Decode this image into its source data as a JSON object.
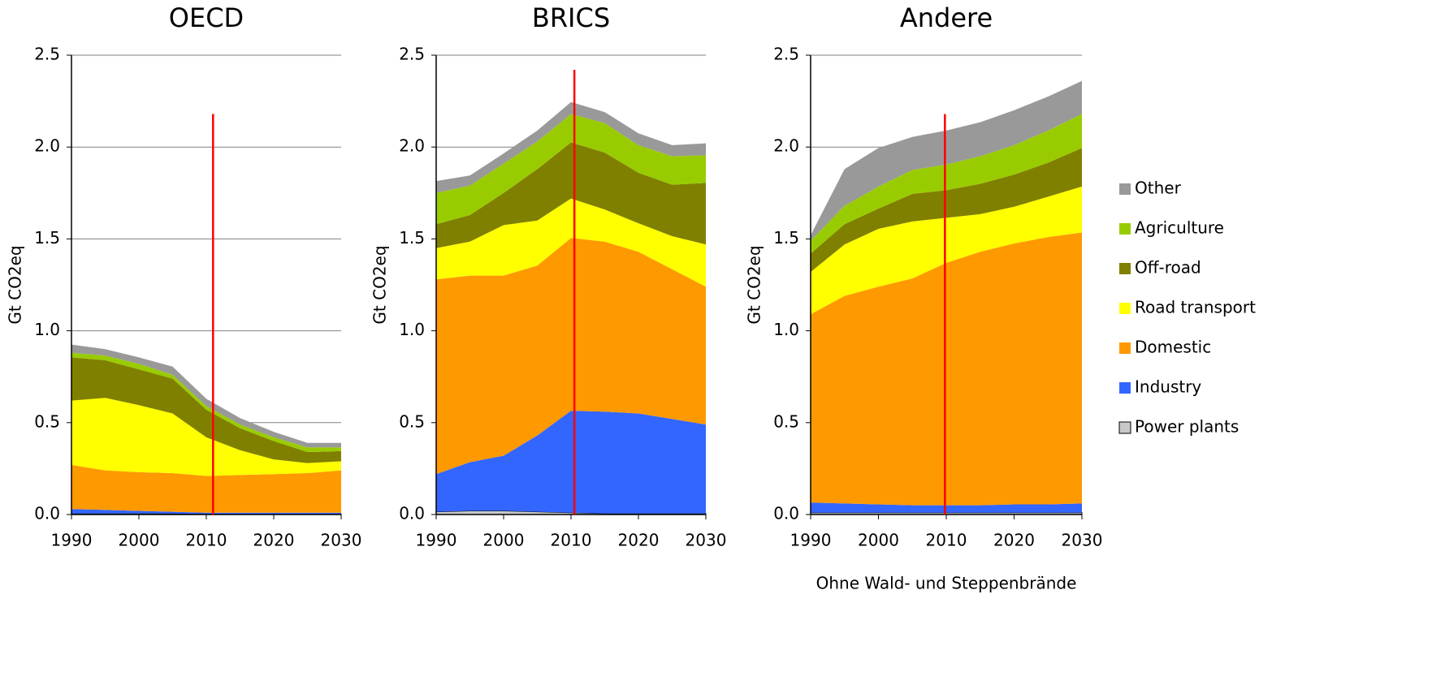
{
  "chart_data": [
    {
      "type": "stacked_area",
      "title": "OECD",
      "ylabel": "Gt CO2eq",
      "x": [
        1990,
        1995,
        2000,
        2005,
        2010,
        2015,
        2020,
        2025,
        2030
      ],
      "xlim": [
        1990,
        2030
      ],
      "xticks": [
        1990,
        2000,
        2010,
        2020,
        2030
      ],
      "ylim": [
        0,
        2.5
      ],
      "yticks": [
        {
          "value": 0,
          "label": "0.0"
        },
        0.5,
        {
          "value": 1,
          "label": "1.0"
        },
        1.5,
        {
          "value": 2,
          "label": "2.0"
        },
        2.5
      ],
      "grid": true,
      "reference_line": {
        "x": 2011,
        "top": 2.18,
        "color": "#ff0000"
      },
      "series": [
        {
          "name": "Power plants",
          "color": "#c8c8c8",
          "values": [
            0.005,
            0.005,
            0.005,
            0.005,
            0.003,
            0.003,
            0.003,
            0.003,
            0.003
          ]
        },
        {
          "name": "Industry",
          "color": "#3366ff",
          "values": [
            0.025,
            0.02,
            0.015,
            0.01,
            0.007,
            0.007,
            0.007,
            0.007,
            0.007
          ]
        },
        {
          "name": "Domestic",
          "color": "#ff9900",
          "values": [
            0.24,
            0.215,
            0.21,
            0.21,
            0.2,
            0.205,
            0.21,
            0.215,
            0.23
          ]
        },
        {
          "name": "Road transport",
          "color": "#ffff00",
          "values": [
            0.35,
            0.395,
            0.365,
            0.325,
            0.21,
            0.135,
            0.08,
            0.055,
            0.05
          ]
        },
        {
          "name": "Off-road",
          "color": "#808000",
          "values": [
            0.235,
            0.205,
            0.195,
            0.19,
            0.15,
            0.12,
            0.1,
            0.06,
            0.055
          ]
        },
        {
          "name": "Agriculture",
          "color": "#99cc00",
          "values": [
            0.025,
            0.025,
            0.03,
            0.02,
            0.02,
            0.02,
            0.02,
            0.025,
            0.02
          ]
        },
        {
          "name": "Other",
          "color": "#999999",
          "values": [
            0.045,
            0.035,
            0.035,
            0.045,
            0.04,
            0.035,
            0.03,
            0.025,
            0.025
          ]
        }
      ]
    },
    {
      "type": "stacked_area",
      "title": "BRICS",
      "ylabel": "Gt CO2eq",
      "x": [
        1990,
        1995,
        2000,
        2005,
        2010,
        2015,
        2020,
        2025,
        2030
      ],
      "xlim": [
        1990,
        2030
      ],
      "xticks": [
        1990,
        2000,
        2010,
        2020,
        2030
      ],
      "ylim": [
        0,
        2.5
      ],
      "yticks": [
        {
          "value": 0,
          "label": "0.0"
        },
        0.5,
        {
          "value": 1,
          "label": "1.0"
        },
        1.5,
        {
          "value": 2,
          "label": "2.0"
        },
        2.5
      ],
      "grid": true,
      "reference_line": {
        "x": 2010.5,
        "top": 2.42,
        "color": "#ff0000"
      },
      "series": [
        {
          "name": "Power plants",
          "color": "#c8c8c8",
          "values": [
            0.015,
            0.02,
            0.02,
            0.015,
            0.01,
            0.005,
            0.005,
            0.005,
            0.005
          ]
        },
        {
          "name": "Industry",
          "color": "#3366ff",
          "values": [
            0.205,
            0.265,
            0.3,
            0.415,
            0.555,
            0.555,
            0.545,
            0.515,
            0.485
          ]
        },
        {
          "name": "Domestic",
          "color": "#ff9900",
          "values": [
            1.06,
            1.015,
            0.98,
            0.925,
            0.94,
            0.925,
            0.88,
            0.815,
            0.75
          ]
        },
        {
          "name": "Road transport",
          "color": "#ffff00",
          "values": [
            0.17,
            0.185,
            0.275,
            0.245,
            0.215,
            0.175,
            0.155,
            0.18,
            0.23
          ]
        },
        {
          "name": "Off-road",
          "color": "#808000",
          "values": [
            0.13,
            0.145,
            0.175,
            0.28,
            0.305,
            0.31,
            0.275,
            0.28,
            0.335
          ]
        },
        {
          "name": "Agriculture",
          "color": "#99cc00",
          "values": [
            0.17,
            0.16,
            0.16,
            0.15,
            0.155,
            0.16,
            0.15,
            0.155,
            0.15
          ]
        },
        {
          "name": "Other",
          "color": "#999999",
          "values": [
            0.065,
            0.055,
            0.055,
            0.06,
            0.065,
            0.06,
            0.065,
            0.06,
            0.065
          ]
        }
      ]
    },
    {
      "type": "stacked_area",
      "title": "Andere",
      "ylabel": "Gt CO2eq",
      "annotation": "Ohne Wald- und Steppenbrände",
      "x": [
        1990,
        1995,
        2000,
        2005,
        2010,
        2015,
        2020,
        2025,
        2030
      ],
      "xlim": [
        1990,
        2030
      ],
      "xticks": [
        1990,
        2000,
        2010,
        2020,
        2030
      ],
      "ylim": [
        0,
        2.5
      ],
      "yticks": [
        {
          "value": 0,
          "label": "0.0"
        },
        0.5,
        {
          "value": 1,
          "label": "1.0"
        },
        1.5,
        {
          "value": 2,
          "label": "2.0"
        },
        2.5
      ],
      "grid": true,
      "reference_line": {
        "x": 2009.8,
        "top": 2.18,
        "color": "#ff0000"
      },
      "series": [
        {
          "name": "Power plants",
          "color": "#c8c8c8",
          "values": [
            0.01,
            0.01,
            0.01,
            0.01,
            0.01,
            0.01,
            0.01,
            0.01,
            0.01
          ]
        },
        {
          "name": "Industry",
          "color": "#3366ff",
          "values": [
            0.055,
            0.05,
            0.045,
            0.04,
            0.04,
            0.04,
            0.045,
            0.045,
            0.05
          ]
        },
        {
          "name": "Domestic",
          "color": "#ff9900",
          "values": [
            1.025,
            1.13,
            1.185,
            1.235,
            1.32,
            1.38,
            1.42,
            1.455,
            1.475
          ]
        },
        {
          "name": "Road transport",
          "color": "#ffff00",
          "values": [
            0.23,
            0.28,
            0.315,
            0.31,
            0.245,
            0.205,
            0.2,
            0.22,
            0.25
          ]
        },
        {
          "name": "Off-road",
          "color": "#808000",
          "values": [
            0.1,
            0.11,
            0.11,
            0.15,
            0.15,
            0.165,
            0.175,
            0.185,
            0.21
          ]
        },
        {
          "name": "Agriculture",
          "color": "#99cc00",
          "values": [
            0.07,
            0.1,
            0.12,
            0.13,
            0.14,
            0.15,
            0.16,
            0.175,
            0.185
          ]
        },
        {
          "name": "Other",
          "color": "#999999",
          "values": [
            0.03,
            0.2,
            0.21,
            0.18,
            0.185,
            0.185,
            0.19,
            0.185,
            0.18
          ]
        }
      ]
    }
  ],
  "legend": {
    "position": "right"
  }
}
